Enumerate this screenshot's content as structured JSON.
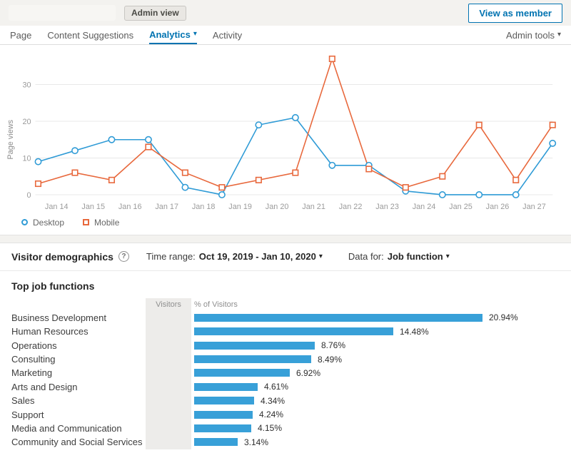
{
  "header": {
    "admin_view_badge": "Admin view",
    "view_as_member_button": "View as member"
  },
  "nav": {
    "tabs": [
      {
        "label": "Page",
        "active": false
      },
      {
        "label": "Content Suggestions",
        "active": false
      },
      {
        "label": "Analytics",
        "active": true
      },
      {
        "label": "Activity",
        "active": false
      }
    ],
    "admin_tools_label": "Admin tools"
  },
  "colors": {
    "accent_blue": "#0073b1",
    "desktop_line": "#2f9bd6",
    "mobile_line": "#e8683c",
    "bar_fill": "#38a0d8"
  },
  "chart_data": [
    {
      "type": "line",
      "title": "",
      "ylabel": "Page views",
      "x_tick_labels": [
        "Jan 14",
        "Jan 15",
        "Jan 16",
        "Jan 17",
        "Jan 18",
        "Jan 19",
        "Jan 20",
        "Jan 21",
        "Jan 22",
        "Jan 23",
        "Jan 24",
        "Jan 25",
        "Jan 26",
        "Jan 27"
      ],
      "yticks": [
        0,
        10,
        20,
        30
      ],
      "ylim": [
        0,
        40
      ],
      "grid": true,
      "legend_position": "bottom-left",
      "layout_hint": "15 daily data points; x tick labels sit between points",
      "series": [
        {
          "name": "Desktop",
          "marker": "circle",
          "color": "#2f9bd6",
          "values": [
            9,
            12,
            15,
            15,
            2,
            0,
            19,
            21,
            8,
            8,
            1,
            0,
            0,
            0,
            14
          ]
        },
        {
          "name": "Mobile",
          "marker": "square",
          "color": "#e8683c",
          "values": [
            3,
            6,
            4,
            13,
            6,
            2,
            4,
            6,
            37,
            7,
            2,
            5,
            19,
            4,
            19
          ]
        }
      ]
    },
    {
      "type": "bar",
      "orientation": "horizontal",
      "title": "Top job functions",
      "xlabel": "% of Visitors",
      "categories": [
        "Business Development",
        "Human Resources",
        "Operations",
        "Consulting",
        "Marketing",
        "Arts and Design",
        "Sales",
        "Support",
        "Media and Communication",
        "Community and Social Services"
      ],
      "values": [
        20.94,
        14.48,
        8.76,
        8.49,
        6.92,
        4.61,
        4.34,
        4.24,
        4.15,
        3.14
      ],
      "value_labels": [
        "20.94%",
        "14.48%",
        "8.76%",
        "8.49%",
        "6.92%",
        "4.61%",
        "4.34%",
        "4.24%",
        "4.15%",
        "3.14%"
      ]
    }
  ],
  "demographics": {
    "title": "Visitor demographics",
    "time_range_label": "Time range:",
    "time_range_value": "Oct 19, 2019 - Jan 10, 2020",
    "data_for_label": "Data for:",
    "data_for_value": "Job function",
    "section_title": "Top job functions",
    "columns": {
      "visitors": "Visitors",
      "percent": "% of Visitors"
    }
  }
}
